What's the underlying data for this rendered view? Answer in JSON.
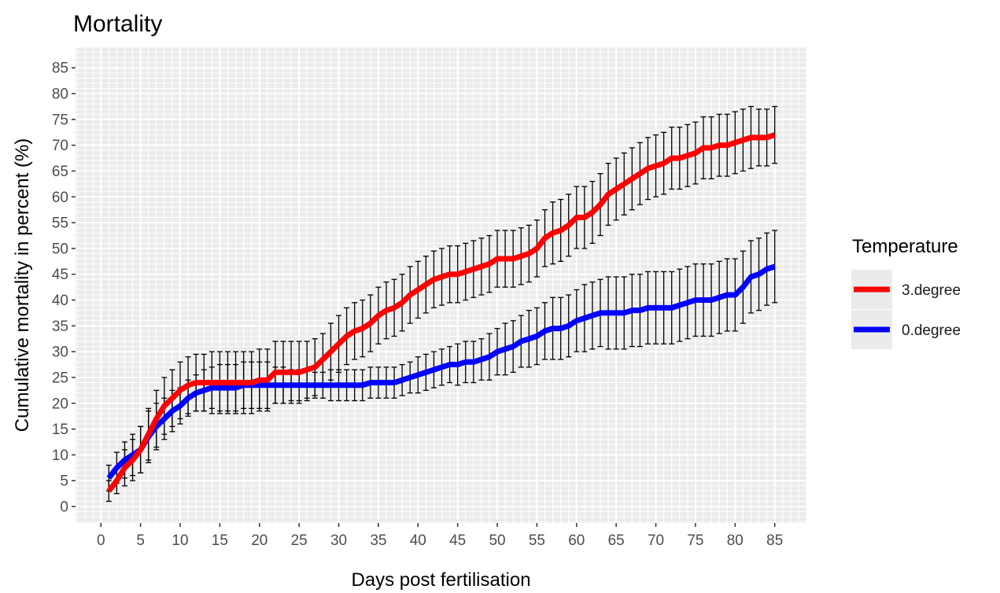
{
  "chart_data": {
    "type": "line",
    "title": "Mortality",
    "xlabel": "Days post fertilisation",
    "ylabel": "Cumulative mortality in percent (%)",
    "xlim": [
      -3.2,
      89
    ],
    "ylim": [
      -3.2,
      89
    ],
    "x_ticks": [
      0,
      5,
      10,
      15,
      20,
      25,
      30,
      35,
      40,
      45,
      50,
      55,
      60,
      65,
      70,
      75,
      80,
      85
    ],
    "y_ticks": [
      0,
      5,
      10,
      15,
      20,
      25,
      30,
      35,
      40,
      45,
      50,
      55,
      60,
      65,
      70,
      75,
      80,
      85
    ],
    "grid": true,
    "legend": {
      "title": "Temperature",
      "placement": "right",
      "entries": [
        "3.degree",
        "0.degree"
      ]
    },
    "series": [
      {
        "name": "3.degree",
        "color": "#ff0000",
        "x": [
          1,
          2,
          3,
          4,
          5,
          6,
          7,
          8,
          9,
          10,
          11,
          12,
          13,
          14,
          15,
          16,
          17,
          18,
          19,
          20,
          21,
          22,
          23,
          24,
          25,
          26,
          27,
          28,
          29,
          30,
          31,
          32,
          33,
          34,
          35,
          36,
          37,
          38,
          39,
          40,
          41,
          42,
          43,
          44,
          45,
          46,
          47,
          48,
          49,
          50,
          51,
          52,
          53,
          54,
          55,
          56,
          57,
          58,
          59,
          60,
          61,
          62,
          63,
          64,
          65,
          66,
          67,
          68,
          69,
          70,
          71,
          72,
          73,
          74,
          75,
          76,
          77,
          78,
          79,
          80,
          81,
          82,
          83,
          84,
          85
        ],
        "y": [
          3,
          5,
          7.5,
          9,
          11,
          14,
          17,
          19.5,
          21,
          22.5,
          23.5,
          24,
          24,
          24,
          24,
          24,
          24,
          24,
          24,
          24.5,
          24.5,
          26,
          26,
          26,
          26,
          26.5,
          27,
          28.5,
          30,
          31.5,
          33,
          34,
          34.5,
          35.5,
          37,
          38,
          38.5,
          39.5,
          41,
          42,
          43,
          44,
          44.5,
          45,
          45,
          45.5,
          46,
          46.5,
          47,
          48,
          48,
          48,
          48.5,
          49,
          50,
          52,
          53,
          53.5,
          54.5,
          56,
          56,
          57,
          58.5,
          60.5,
          61.5,
          62.5,
          63.5,
          64.5,
          65.5,
          66,
          66.5,
          67.5,
          67.5,
          68,
          68.5,
          69.5,
          69.5,
          70,
          70,
          70.5,
          71,
          71.5,
          71.5,
          71.5,
          72
        ],
        "error": [
          2,
          2.5,
          3.5,
          4,
          4.5,
          5,
          5.5,
          5.5,
          5.5,
          5.5,
          5.5,
          5.5,
          5.5,
          6,
          6,
          6,
          6,
          6,
          6,
          6,
          6,
          6,
          6,
          6,
          6,
          5.5,
          5.5,
          5,
          5.5,
          5.5,
          5.5,
          5.5,
          5.5,
          5.5,
          5.5,
          5.5,
          5.5,
          5.5,
          5.5,
          5.5,
          5.5,
          5.5,
          5.5,
          5.5,
          5.5,
          5.5,
          5.5,
          5.5,
          5.5,
          5.5,
          5.5,
          5.5,
          5.5,
          5.5,
          5.5,
          5.5,
          6,
          6,
          6,
          6,
          6,
          6,
          6,
          6,
          6,
          6,
          6,
          6,
          6,
          6,
          6,
          6,
          6,
          6,
          6,
          6,
          6,
          6,
          6,
          6,
          6,
          6,
          5.5,
          5.5,
          5.5
        ]
      },
      {
        "name": "0.degree",
        "color": "#0000ff",
        "x": [
          1,
          2,
          3,
          4,
          5,
          6,
          7,
          8,
          9,
          10,
          11,
          12,
          13,
          14,
          15,
          16,
          17,
          18,
          19,
          20,
          21,
          22,
          23,
          24,
          25,
          26,
          27,
          28,
          29,
          30,
          31,
          32,
          33,
          34,
          35,
          36,
          37,
          38,
          39,
          40,
          41,
          42,
          43,
          44,
          45,
          46,
          47,
          48,
          49,
          50,
          51,
          52,
          53,
          54,
          55,
          56,
          57,
          58,
          59,
          60,
          61,
          62,
          63,
          64,
          65,
          66,
          67,
          68,
          69,
          70,
          71,
          72,
          73,
          74,
          75,
          76,
          77,
          78,
          79,
          80,
          81,
          82,
          83,
          84,
          85
        ],
        "y": [
          5.5,
          7.5,
          9,
          10,
          11,
          13.5,
          15.5,
          17,
          18.5,
          19.5,
          21,
          22,
          22.5,
          23,
          23,
          23,
          23,
          23.5,
          23.5,
          23.5,
          23.5,
          23.5,
          23.5,
          23.5,
          23.5,
          23.5,
          23.5,
          23.5,
          23.5,
          23.5,
          23.5,
          23.5,
          23.5,
          24,
          24,
          24,
          24,
          24.5,
          25,
          25.5,
          26,
          26.5,
          27,
          27.5,
          27.5,
          28,
          28,
          28.5,
          29,
          30,
          30.5,
          31,
          32,
          32.5,
          33,
          34,
          34.5,
          34.5,
          35,
          36,
          36.5,
          37,
          37.5,
          37.5,
          37.5,
          37.5,
          38,
          38,
          38.5,
          38.5,
          38.5,
          38.5,
          39,
          39.5,
          40,
          40,
          40,
          40.5,
          41,
          41,
          42.5,
          44.5,
          45,
          46,
          46.5
        ],
        "error": [
          2.5,
          3,
          3.5,
          4,
          4.5,
          5,
          4.5,
          4,
          4,
          3.5,
          3.5,
          3.5,
          4,
          4,
          4.5,
          4.5,
          4.5,
          4.5,
          4.5,
          4.5,
          4.5,
          3.5,
          3.5,
          3,
          3,
          3,
          2.5,
          2.5,
          3,
          3,
          3,
          3,
          3,
          3,
          3,
          3,
          3,
          3,
          3,
          3.5,
          3.5,
          3.5,
          3.5,
          3.5,
          4,
          4,
          4,
          4,
          4.5,
          4.5,
          5,
          5,
          5,
          5.5,
          5.5,
          5.5,
          6,
          6,
          6,
          6,
          6.5,
          6.5,
          6.5,
          7,
          7,
          7,
          7,
          7,
          7,
          7,
          7,
          7,
          7,
          7,
          7,
          7,
          7,
          7,
          7,
          7,
          7,
          7,
          7,
          7,
          7
        ]
      }
    ]
  }
}
